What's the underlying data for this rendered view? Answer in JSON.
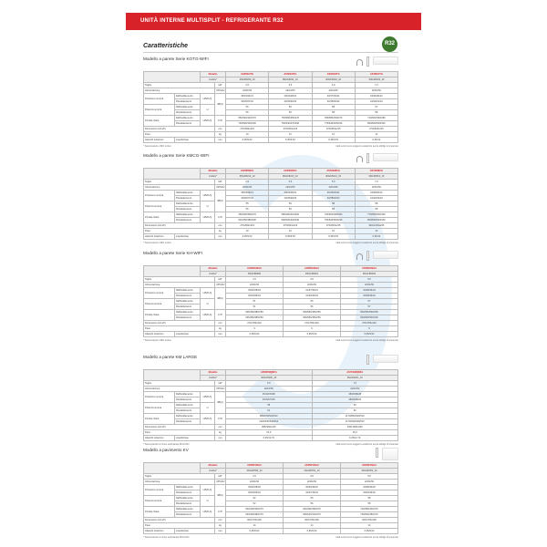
{
  "banner": "UNITÀ INTERNE MULTISPLIT - REFRIGERANTE R32",
  "heading": "Caratteristiche",
  "badge": "R32",
  "labels": {
    "modello": "Modello",
    "codice": "Codice*",
    "taglia": "Taglia",
    "alimentazione": "Alimentazione",
    "pressione": "Pressione sonora",
    "potenza": "Potenza sonora",
    "portata": "Portata d'aria",
    "dimensioni": "Dimensioni (AxLxP)",
    "peso": "Peso",
    "attacchi": "Attacchi tubazioni",
    "raff": "Raffreddamento",
    "risc": "Riscaldamento",
    "liquido": "Liquido/Gas",
    "hmlq": "H/M/L/Q",
    "h": "H",
    "u_kw": "kW",
    "u_v": "V/Ph/Hz",
    "u_db": "dB(A)",
    "u_m3": "m³/h",
    "u_mm": "mm",
    "u_kg": "kg"
  },
  "note_right": "I dati tecnici sono soggetti a variazioni senza obbligo di preavviso",
  "sections": [
    {
      "title": "Modello a parete Serie KOTG-WIFI",
      "icons": [
        "wifi-icon",
        "remote-icon",
        "indoor-unit-icon"
      ],
      "footnote": "* Telecomando e WiFi inclusi",
      "models": [
        "AS25KOTG",
        "AS35KOTG",
        "AS50KOTG",
        "AS70KOTG"
      ],
      "codes": [
        "3NGF8230_10",
        "3NGF8231_10",
        "3NGF8232_10",
        "3NGF8233_10"
      ],
      "values": [
        [
          "2,5",
          "3,5",
          "5,0",
          "7,0"
        ],
        [
          "220/1/50",
          "220/1/50",
          "220/1/50",
          "220/1/50"
        ],
        [
          "39/33/24/21",
          "40/34/28/21",
          "40/37/30/21",
          "43/36/30/21"
        ],
        [
          "40/35/27/22",
          "42/35/30/22",
          "42/38/30/22",
          "44/39/31/24"
        ],
        [
          "56",
          "56",
          "58",
          "57"
        ],
        [
          "56",
          "56",
          "58",
          "58"
        ],
        [
          "550/340/430/270",
          "750/550/450/270",
          "780/580/450/270",
          "710/600/450/280"
        ],
        [
          "720/590/400/330",
          "760/540/470/330",
          "770/640/520/330",
          "800/600/520/340"
        ],
        [
          "270x834x215",
          "270x834x215",
          "270x834x215",
          "270x834x215"
        ],
        [
          "10",
          "10",
          "10",
          "11"
        ],
        [
          "6,35/9,52",
          "6,35/9,52",
          "6,35/9,52",
          "6,35/12"
        ]
      ]
    },
    {
      "title": "Modello a parete Serie KMCG-WIFI",
      "icons": [
        "wifi-icon",
        "remote-icon",
        "indoor-unit-icon"
      ],
      "footnote": "* Telecomando e WiFi inclusi",
      "models": [
        "AS25KMCG",
        "AS35KMCG",
        "AS50KMCG",
        "AS70KMCG"
      ],
      "codes": [
        "3NGF8212_10",
        "3NGF8213_10",
        "3NGF8214_10",
        "3NGF8215_10"
      ],
      "values": [
        [
          "2,5",
          "3,5",
          "5,0",
          "7,0"
        ],
        [
          "220/1/50",
          "220/1/50",
          "220/1/50",
          "220/1/50"
        ],
        [
          "38/33/26/21",
          "40/34/28/21",
          "40/36/30/21",
          "43/38/30/21"
        ],
        [
          "40/35/27/22",
          "42/35/29/22",
          "42/38/32/22",
          "44/40/33/24"
        ],
        [
          "55",
          "56",
          "58",
          "58"
        ],
        [
          "56",
          "56",
          "58",
          "58"
        ],
        [
          "450/390/350/270",
          "580/490/410/300",
          "720/600/480/320",
          "770/650/520/330"
        ],
        [
          "520/450/380/330",
          "590/500/420/330",
          "750/620/500/330",
          "800/660/530/340"
        ],
        [
          "270x834x215",
          "270x834x215",
          "270x834x215",
          "300x1018x225"
        ],
        [
          "10",
          "10",
          "10",
          "12"
        ],
        [
          "6,35/9,52",
          "6,35/9,52",
          "6,35/9,52",
          "6,35/12"
        ]
      ]
    },
    {
      "title": "Modello a parete Serie KH-WIFI",
      "icons": [
        "wifi-icon",
        "remote-icon",
        "indoor-unit-icon"
      ],
      "footnote": "* Telecomando e WiFi inclusi",
      "models": [
        "AS25KHNGA",
        "AS35KHNGA",
        "AS50KHNGA"
      ],
      "codes": [
        "3NGF89090",
        "3NGF89091",
        "3NGF89092"
      ],
      "values": [
        [
          "2,5",
          "3,5",
          "5,0"
        ],
        [
          "220/1/50",
          "220/1/50",
          "220/1/50"
        ],
        [
          "36/32/28/23",
          "41/37/30/21",
          "42/38/33/24"
        ],
        [
          "36/33/28/22",
          "41/36/30/23",
          "42/38/33/22"
        ],
        [
          "51",
          "56",
          "57"
        ],
        [
          "51",
          "56",
          "57"
        ],
        [
          "535/460/380/250",
          "650/550/450/250",
          "800/650/500/250"
        ],
        [
          "535/460/380/250",
          "650/550/450/250",
          "800/650/500/260"
        ],
        [
          "270x784x222",
          "270x784x222",
          "270x784x222"
        ],
        [
          "9",
          "9",
          "9"
        ],
        [
          "6,35/9,52",
          "6,35/9,52",
          "6,35/9,52"
        ]
      ]
    },
    {
      "title": "Modello a parete KM LARGE",
      "icons": [
        "remote-icon",
        "indoor-unit-icon"
      ],
      "footnote": "* Telecomando con timer settimanale INCLUSO",
      "models": [
        "AS50KMQNFA",
        "AS70KMQNFA"
      ],
      "codes": [
        "3NGF9200_10",
        "3NGF9201_10"
      ],
      "values": [
        [
          "5,0",
          "7,0"
        ],
        [
          "220/1/50",
          "220/1/50"
        ],
        [
          "45/42/33/28",
          "48/45/38/28"
        ],
        [
          "45/40/37/29",
          "48/45/38/29"
        ],
        [
          "58",
          "60"
        ],
        [
          "61",
          "62"
        ],
        [
          "880/970/544/510",
          "1170/850/640/510"
        ],
        [
          "1020/930/640/510",
          "1170/930/640/510"
        ],
        [
          "285x960x246",
          "335x1090x246"
        ],
        [
          "12,0",
          "15,0"
        ],
        [
          "6,35/12,70",
          "6,35/12,70"
        ]
      ]
    },
    {
      "title": "Modello a pavimento KV",
      "icons": [
        "remote-icon",
        "floor-unit-icon"
      ],
      "footnote": "* Telecomando con timer settimanale INCLUSO",
      "models": [
        "AS25KVNGA",
        "AS35KVNGA",
        "AS50KVNGA"
      ],
      "codes": [
        "3NGF8780_10",
        "3NGF8781_10",
        "3NGF8782_10"
      ],
      "values": [
        [
          "2,5",
          "3,5",
          "5,0"
        ],
        [
          "220/1/50",
          "220/1/50",
          "220/1/50"
        ],
        [
          "36/32/28/22",
          "40/36/30/22",
          "43/38/33/22"
        ],
        [
          "36/33/29/22",
          "42/37/33/22",
          "43/39/33/22"
        ],
        [
          "52",
          "55",
          "58"
        ],
        [
          "52",
          "56",
          "58"
        ],
        [
          "520/440/360/270",
          "600/490/390/270",
          "700/580/440/270"
        ],
        [
          "530/460/380/270",
          "650/510/410/270",
          "730/600/450/270"
        ],
        [
          "600x700x200",
          "600x700x200",
          "600x700x200"
        ],
        [
          "14",
          "14",
          "14"
        ],
        [
          "6,35/9,52",
          "6,35/9,52",
          "6,35/9,52"
        ]
      ]
    }
  ]
}
